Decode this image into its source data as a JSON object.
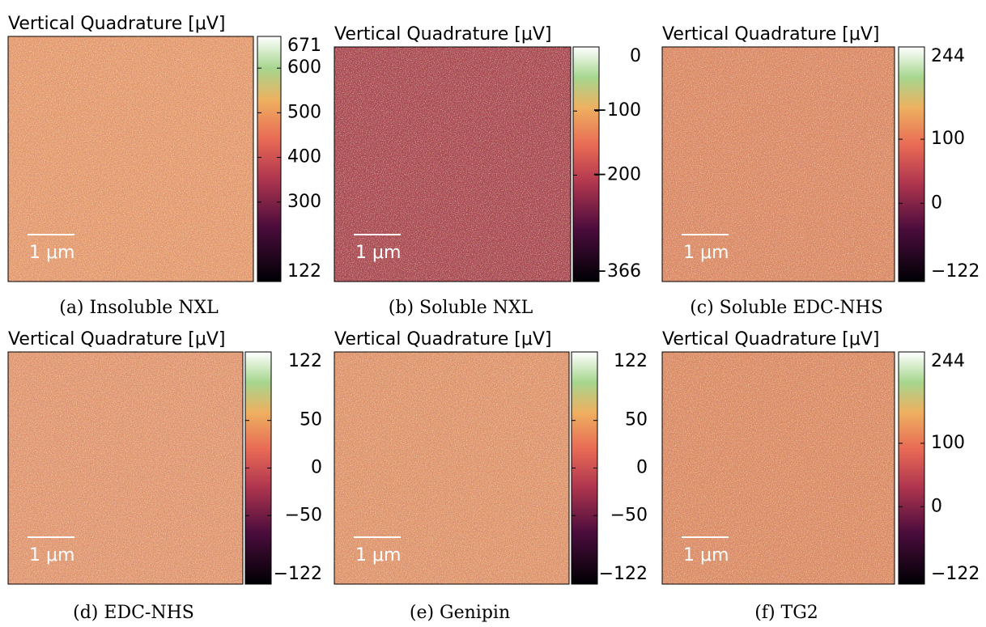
{
  "panels": [
    {
      "title": "Vertical Quadrature [μV]",
      "scale_bar": "1 μm",
      "caption": "(a) Insoluble NXL",
      "colorbar": {
        "lim": [
          122,
          671
        ],
        "ticks": [
          122,
          300,
          400,
          500,
          600,
          671
        ]
      }
    },
    {
      "title": "Vertical Quadrature [μV]",
      "scale_bar": "1 μm",
      "caption": "(b) Soluble NXL",
      "colorbar": {
        "lim": [
          -366,
          0
        ],
        "ticks": [
          {
            "value": -366,
            "label": "−366"
          },
          {
            "value": -200,
            "label": "−200"
          },
          {
            "value": -100,
            "label": "−100"
          },
          0
        ]
      }
    },
    {
      "title": "Vertical Quadrature [μV]",
      "scale_bar": "1 μm",
      "caption": "(c) Soluble EDC-NHS",
      "colorbar": {
        "lim": [
          -122,
          244
        ],
        "ticks": [
          {
            "value": -122,
            "label": "−122"
          },
          0,
          100,
          244
        ]
      }
    },
    {
      "title": "Vertical Quadrature [μV]",
      "scale_bar": "1 μm",
      "caption": "(d) EDC-NHS",
      "colorbar": {
        "lim": [
          -122,
          122
        ],
        "ticks": [
          {
            "value": -122,
            "label": "−122"
          },
          {
            "value": -50,
            "label": "−50"
          },
          0,
          50,
          122
        ]
      }
    },
    {
      "title": "Vertical Quadrature [μV]",
      "scale_bar": "1 μm",
      "caption": "(e) Genipin",
      "colorbar": {
        "lim": [
          -122,
          122
        ],
        "ticks": [
          {
            "value": -122,
            "label": "−122"
          },
          {
            "value": -50,
            "label": "−50"
          },
          0,
          50,
          122
        ]
      }
    },
    {
      "title": "Vertical Quadrature [μV]",
      "scale_bar": "1 μm",
      "caption": "(f) TG2",
      "colorbar": {
        "lim": [
          -122,
          244
        ],
        "ticks": [
          {
            "value": -122,
            "label": "−122"
          },
          0,
          100,
          244
        ]
      }
    }
  ]
}
